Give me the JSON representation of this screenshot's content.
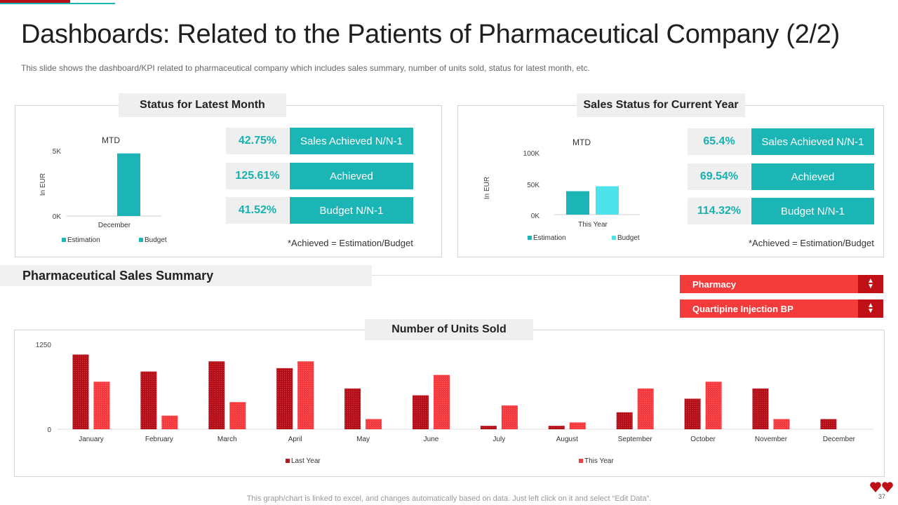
{
  "header": {
    "title": "Dashboards: Related to the Patients of Pharmaceutical Company (2/2)",
    "subtitle": "This slide shows the dashboard/KPI related to pharmaceutical company which includes sales summary, number of units sold, status for latest month, etc."
  },
  "status_latest_month": {
    "heading": "Status for Latest Month",
    "kpis": [
      {
        "value": "42.75%",
        "label": "Sales Achieved N/N-1"
      },
      {
        "value": "125.61%",
        "label": "Achieved"
      },
      {
        "value": "41.52%",
        "label": "Budget N/N-1"
      }
    ],
    "note": "*Achieved = Estimation/Budget"
  },
  "sales_status_year": {
    "heading": "Sales Status for Current Year",
    "kpis": [
      {
        "value": "65.4%",
        "label": "Sales Achieved N/N-1"
      },
      {
        "value": "69.54%",
        "label": "Achieved"
      },
      {
        "value": "114.32%",
        "label": "Budget N/N-1"
      }
    ],
    "note": "*Achieved = Estimation/Budget"
  },
  "summary": {
    "heading": "Pharmaceutical Sales Summary",
    "dropdowns": [
      "Pharmacy",
      "Quartipine Injection BP"
    ]
  },
  "units_sold": {
    "heading": "Number of Units Sold"
  },
  "footer": {
    "text": "This graph/chart is linked to excel,  and changes automatically based on data. Just left click on it and select “Edit Data”.",
    "page_number": "37"
  },
  "colors": {
    "teal": "#1bb5b5",
    "light_teal": "#4ee3ea",
    "dark_red": "#b5101a",
    "red": "#f5393d",
    "dropdown_red": "#f33b3b",
    "dropdown_arrow": "#c10f16"
  },
  "chart_data": [
    {
      "type": "bar",
      "title": "MTD",
      "categories": [
        "December"
      ],
      "series": [
        {
          "name": "Estimation",
          "values": [
            0
          ]
        },
        {
          "name": "Budget",
          "values": [
            4800
          ]
        }
      ],
      "ylabel": "In EUR",
      "yticks": [
        "5K",
        "0K"
      ],
      "ylim": [
        0,
        5000
      ]
    },
    {
      "type": "bar",
      "title": "MTD",
      "categories": [
        "This Year"
      ],
      "series": [
        {
          "name": "Estimation",
          "values": [
            38000
          ]
        },
        {
          "name": "Budget",
          "values": [
            46000
          ]
        }
      ],
      "ylabel": "In EUR",
      "yticks": [
        "100K",
        "50K",
        "0K"
      ],
      "ylim": [
        0,
        100000
      ]
    },
    {
      "type": "bar",
      "title": "Number of Units Sold",
      "categories": [
        "January",
        "February",
        "March",
        "April",
        "May",
        "June",
        "July",
        "August",
        "September",
        "October",
        "November",
        "December"
      ],
      "series": [
        {
          "name": "Last Year",
          "values": [
            1100,
            850,
            1000,
            900,
            600,
            500,
            50,
            50,
            250,
            450,
            600,
            150
          ]
        },
        {
          "name": "This Year",
          "values": [
            700,
            200,
            400,
            1000,
            150,
            800,
            350,
            100,
            600,
            700,
            150,
            0
          ]
        }
      ],
      "yticks": [
        "1250",
        "0"
      ],
      "ylim": [
        0,
        1250
      ]
    }
  ]
}
